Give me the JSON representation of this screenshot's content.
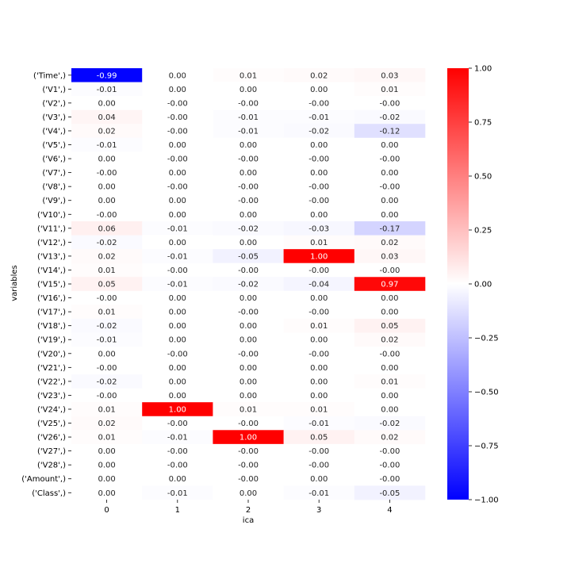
{
  "chart_data": {
    "type": "heatmap",
    "xlabel": "ica",
    "ylabel": "variables",
    "x_categories": [
      "0",
      "1",
      "2",
      "3",
      "4"
    ],
    "y_categories": [
      "('Time',)",
      "('V1',)",
      "('V2',)",
      "('V3',)",
      "('V4',)",
      "('V5',)",
      "('V6',)",
      "('V7',)",
      "('V8',)",
      "('V9',)",
      "('V10',)",
      "('V11',)",
      "('V12',)",
      "('V13',)",
      "('V14',)",
      "('V15',)",
      "('V16',)",
      "('V17',)",
      "('V18',)",
      "('V19',)",
      "('V20',)",
      "('V21',)",
      "('V22',)",
      "('V23',)",
      "('V24',)",
      "('V25',)",
      "('V26',)",
      "('V27',)",
      "('V28',)",
      "('Amount',)",
      "('Class',)"
    ],
    "values": [
      [
        -0.99,
        0.0,
        0.01,
        0.02,
        0.03
      ],
      [
        -0.01,
        0.0,
        0.0,
        0.0,
        0.01
      ],
      [
        0.0,
        -0.0,
        -0.0,
        -0.0,
        -0.0
      ],
      [
        0.04,
        -0.0,
        -0.01,
        -0.01,
        -0.02
      ],
      [
        0.02,
        -0.0,
        -0.01,
        -0.02,
        -0.12
      ],
      [
        -0.01,
        0.0,
        0.0,
        0.0,
        0.0
      ],
      [
        0.0,
        -0.0,
        -0.0,
        -0.0,
        -0.0
      ],
      [
        -0.0,
        0.0,
        0.0,
        0.0,
        0.0
      ],
      [
        0.0,
        -0.0,
        -0.0,
        -0.0,
        -0.0
      ],
      [
        0.0,
        0.0,
        -0.0,
        -0.0,
        0.0
      ],
      [
        -0.0,
        0.0,
        0.0,
        0.0,
        0.0
      ],
      [
        0.06,
        -0.01,
        -0.02,
        -0.03,
        -0.17
      ],
      [
        -0.02,
        0.0,
        0.0,
        0.01,
        0.02
      ],
      [
        0.02,
        -0.01,
        -0.05,
        1.0,
        0.03
      ],
      [
        0.01,
        -0.0,
        -0.0,
        -0.0,
        -0.0
      ],
      [
        0.05,
        -0.01,
        -0.02,
        -0.04,
        0.97
      ],
      [
        -0.0,
        0.0,
        0.0,
        0.0,
        0.0
      ],
      [
        0.01,
        0.0,
        -0.0,
        -0.0,
        0.0
      ],
      [
        -0.02,
        0.0,
        0.0,
        0.01,
        0.05
      ],
      [
        -0.01,
        0.0,
        0.0,
        0.0,
        0.02
      ],
      [
        0.0,
        -0.0,
        -0.0,
        -0.0,
        -0.0
      ],
      [
        -0.0,
        0.0,
        0.0,
        0.0,
        0.0
      ],
      [
        -0.02,
        0.0,
        0.0,
        0.0,
        0.01
      ],
      [
        -0.0,
        0.0,
        0.0,
        0.0,
        0.0
      ],
      [
        0.01,
        1.0,
        0.01,
        0.01,
        0.0
      ],
      [
        0.02,
        -0.0,
        -0.0,
        -0.01,
        -0.02
      ],
      [
        0.01,
        -0.01,
        1.0,
        0.05,
        0.02
      ],
      [
        0.0,
        -0.0,
        -0.0,
        -0.0,
        -0.0
      ],
      [
        0.0,
        -0.0,
        -0.0,
        -0.0,
        -0.0
      ],
      [
        0.0,
        0.0,
        -0.0,
        0.0,
        -0.0
      ],
      [
        0.0,
        -0.01,
        0.0,
        -0.01,
        -0.05
      ]
    ],
    "colorbar": {
      "vmin": -1.0,
      "vmax": 1.0,
      "ticks": [
        1.0,
        0.75,
        0.5,
        0.25,
        0.0,
        -0.25,
        -0.5,
        -0.75,
        -1.0
      ],
      "tick_labels": [
        "1.00",
        "0.75",
        "0.50",
        "0.25",
        "0.00",
        "−0.25",
        "−0.50",
        "−0.75",
        "−1.00"
      ],
      "colormap": "bwr",
      "colors": {
        "low": "#0000ff",
        "mid": "#ffffff",
        "high": "#ff0000"
      }
    },
    "grid": false
  }
}
